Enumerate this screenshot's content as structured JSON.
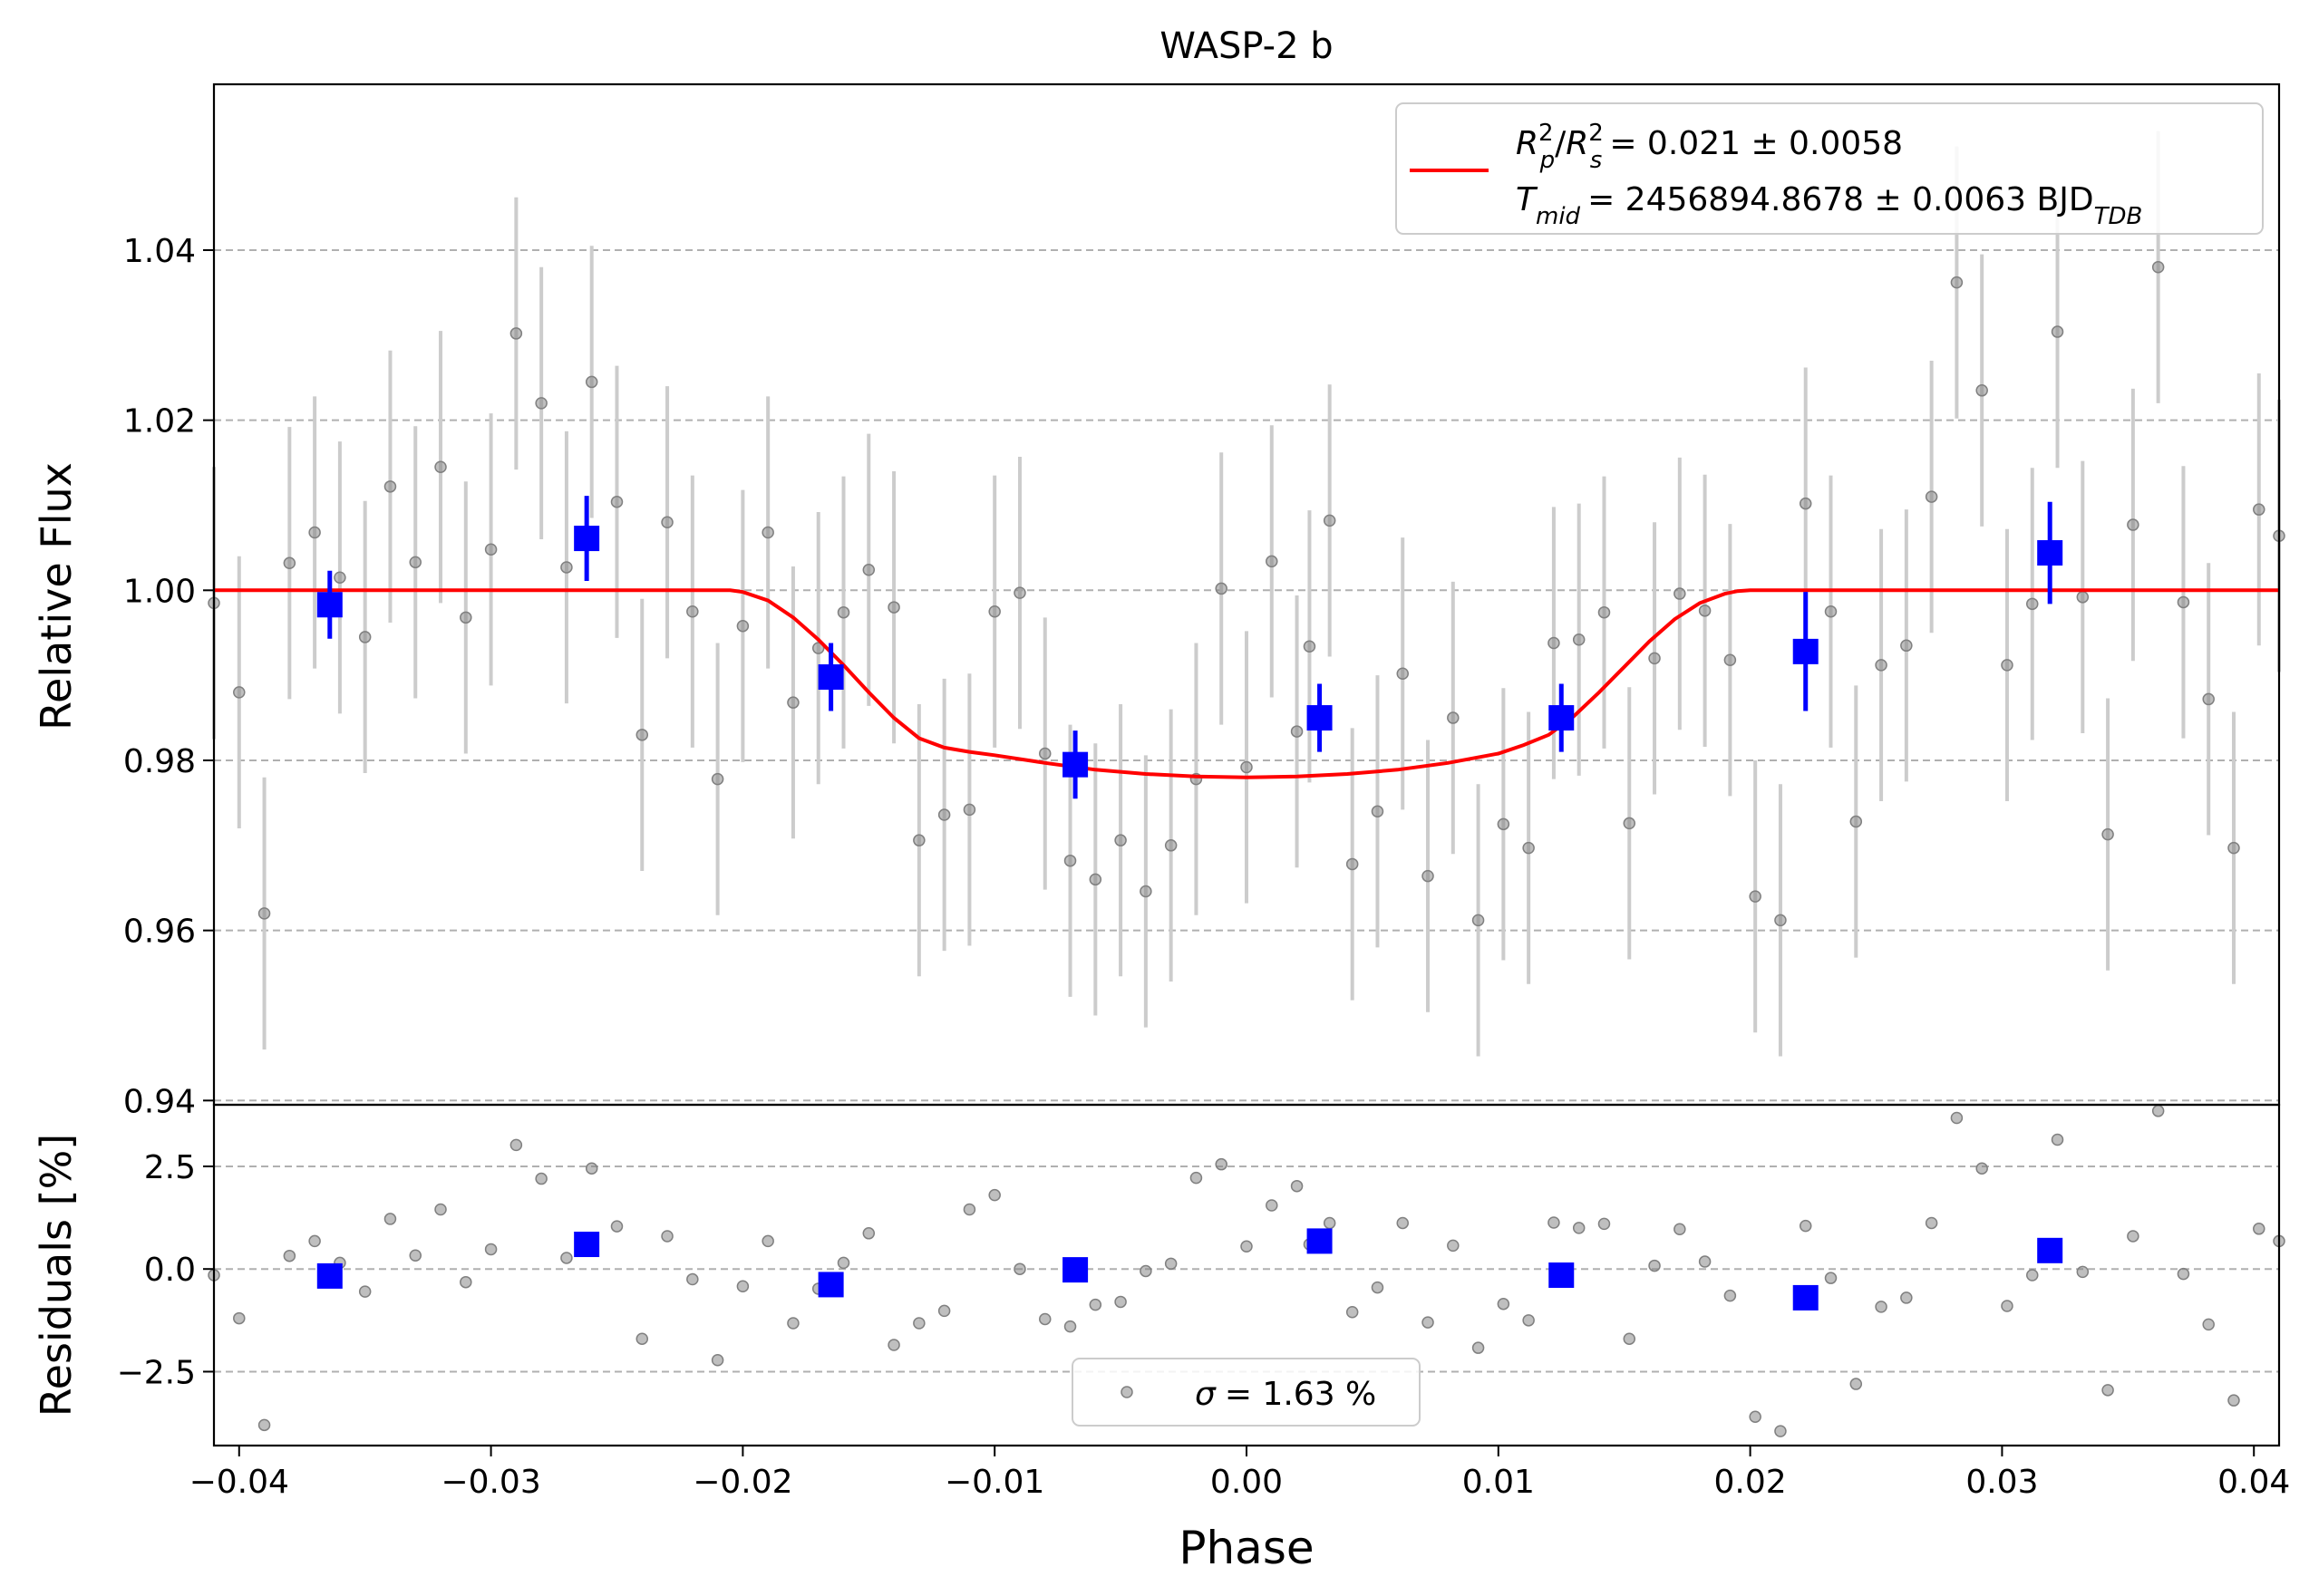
{
  "chart_data": {
    "title": "WASP-2 b",
    "xlabel": "Phase",
    "xlim": [
      -0.041,
      0.041
    ],
    "xticks": [
      -0.04,
      -0.03,
      -0.02,
      -0.01,
      0.0,
      0.01,
      0.02,
      0.03,
      0.04
    ],
    "xtick_labels": [
      "−0.04",
      "−0.03",
      "−0.02",
      "−0.01",
      "0.00",
      "0.01",
      "0.02",
      "0.03",
      "0.04"
    ],
    "top": {
      "type": "scatter",
      "ylabel": "Relative Flux",
      "ylim": [
        0.9395,
        1.0595
      ],
      "yticks": [
        0.94,
        0.96,
        0.98,
        1.0,
        1.02,
        1.04
      ],
      "ytick_labels": [
        "0.94",
        "0.96",
        "0.98",
        "1.00",
        "1.02",
        "1.04"
      ],
      "grid": "horizontal dashed",
      "model": {
        "x": [
          -0.041,
          -0.0205,
          -0.02,
          -0.019,
          -0.018,
          -0.017,
          -0.016,
          -0.015,
          -0.014,
          -0.013,
          -0.012,
          -0.011,
          -0.01,
          -0.008,
          -0.006,
          -0.004,
          -0.002,
          0.0,
          0.002,
          0.004,
          0.006,
          0.008,
          0.01,
          0.011,
          0.012,
          0.013,
          0.014,
          0.015,
          0.016,
          0.017,
          0.018,
          0.019,
          0.0195,
          0.02,
          0.041
        ],
        "y": [
          1.0,
          1.0,
          0.9998,
          0.9988,
          0.9968,
          0.9942,
          0.9912,
          0.988,
          0.985,
          0.9826,
          0.9815,
          0.981,
          0.9806,
          0.9797,
          0.9789,
          0.9784,
          0.9781,
          0.978,
          0.9781,
          0.9784,
          0.9789,
          0.9797,
          0.9808,
          0.9818,
          0.983,
          0.9852,
          0.988,
          0.991,
          0.994,
          0.9966,
          0.9985,
          0.9996,
          0.9999,
          1.0,
          1.0
        ],
        "color": "#ff0000"
      },
      "raw": {
        "color": "#808080",
        "errcolor": "#cccccc",
        "x": [
          -0.041,
          -0.04,
          -0.039,
          -0.038,
          -0.037,
          -0.036,
          -0.035,
          -0.034,
          -0.033,
          -0.032,
          -0.031,
          -0.03,
          -0.029,
          -0.028,
          -0.027,
          -0.026,
          -0.025,
          -0.024,
          -0.023,
          -0.022,
          -0.021,
          -0.02,
          -0.019,
          -0.018,
          -0.017,
          -0.016,
          -0.015,
          -0.014,
          -0.013,
          -0.012,
          -0.011,
          -0.01,
          -0.009,
          -0.008,
          -0.007,
          -0.006,
          -0.005,
          -0.004,
          -0.003,
          -0.002,
          -0.001,
          0.0,
          0.001,
          0.002,
          0.0025,
          0.0033,
          0.0042,
          0.0052,
          0.0062,
          0.0072,
          0.0082,
          0.0092,
          0.0102,
          0.0112,
          0.0122,
          0.0132,
          0.0142,
          0.0152,
          0.0162,
          0.0172,
          0.0182,
          0.0192,
          0.0202,
          0.0212,
          0.0222,
          0.0232,
          0.0242,
          0.0252,
          0.0262,
          0.0272,
          0.0282,
          0.0292,
          0.0302,
          0.0312,
          0.0322,
          0.0332,
          0.0342,
          0.0352,
          0.0362,
          0.0372,
          0.0382,
          0.0392,
          0.0402,
          0.041
        ],
        "y": [
          0.9985,
          0.988,
          0.962,
          1.0032,
          1.0068,
          1.0015,
          0.9945,
          1.0122,
          1.0033,
          1.0145,
          0.9968,
          1.0048,
          1.0302,
          1.022,
          1.0027,
          1.0245,
          1.0104,
          0.983,
          1.008,
          0.9975,
          0.9778,
          0.9958,
          1.0068,
          0.9868,
          0.9932,
          0.9974,
          1.0024,
          0.998,
          0.9706,
          0.9736,
          0.9742,
          0.9975,
          0.9997,
          0.9808,
          0.9682,
          0.966,
          0.9706,
          0.9646,
          0.97,
          0.9778,
          1.0002,
          0.9792,
          1.0034,
          0.9834,
          0.9934,
          1.0082,
          0.9678,
          0.974,
          0.9902,
          0.9664,
          0.985,
          0.9612,
          0.9725,
          0.9697,
          0.9938,
          0.9942,
          0.9974,
          0.9726,
          0.992,
          0.9996,
          0.9976,
          0.9918,
          0.964,
          0.9612,
          1.0102,
          0.9975,
          0.9728,
          0.9912,
          0.9935,
          1.011,
          1.0362,
          1.0235,
          0.9912,
          0.9984,
          1.0304,
          0.9992,
          0.9713,
          1.0077,
          1.038,
          0.9986,
          0.9872,
          0.9697,
          1.0095,
          1.0064
        ],
        "err": [
          0.016,
          0.016,
          0.016,
          0.016,
          0.016,
          0.016,
          0.016,
          0.016,
          0.016,
          0.016,
          0.016,
          0.016,
          0.016,
          0.016,
          0.016,
          0.016,
          0.016,
          0.016,
          0.016,
          0.016,
          0.016,
          0.016,
          0.016,
          0.016,
          0.016,
          0.016,
          0.016,
          0.016,
          0.016,
          0.016,
          0.016,
          0.016,
          0.016,
          0.016,
          0.016,
          0.016,
          0.016,
          0.016,
          0.016,
          0.016,
          0.016,
          0.016,
          0.016,
          0.016,
          0.016,
          0.016,
          0.016,
          0.016,
          0.016,
          0.016,
          0.016,
          0.016,
          0.016,
          0.016,
          0.016,
          0.016,
          0.016,
          0.016,
          0.016,
          0.016,
          0.016,
          0.016,
          0.016,
          0.016,
          0.016,
          0.016,
          0.016,
          0.016,
          0.016,
          0.016,
          0.016,
          0.016,
          0.016,
          0.016,
          0.016,
          0.016,
          0.016,
          0.016,
          0.016,
          0.016,
          0.016,
          0.016,
          0.016,
          0.016
        ]
      },
      "binned": {
        "color": "#0000ff",
        "x": [
          -0.0364,
          -0.0262,
          -0.0165,
          -0.0068,
          0.0029,
          0.0125,
          0.0222,
          0.0319
        ],
        "y": [
          0.9983,
          1.0061,
          0.9898,
          0.9795,
          0.985,
          0.985,
          0.9928,
          1.0044
        ],
        "err": [
          0.004,
          0.005,
          0.004,
          0.004,
          0.004,
          0.004,
          0.007,
          0.006
        ]
      },
      "legend": {
        "position": "top-right",
        "line1_a": "R",
        "line1_a_sup": "2",
        "line1_a_sub": "p",
        "line1_b": "R",
        "line1_b_sup": "2",
        "line1_b_sub": "s",
        "line1_value": "= 0.021 ± 0.0058",
        "line2_t": "T",
        "line2_t_sub": "mid",
        "line2_value": "= 2456894.8678 ± 0.0063 BJD",
        "line2_unit_sub": "TDB"
      }
    },
    "bottom": {
      "type": "scatter",
      "ylabel": "Residuals [%]",
      "ylim": [
        -4.3,
        4.0
      ],
      "yticks": [
        -2.5,
        0.0,
        2.5
      ],
      "ytick_labels": [
        "−2.5",
        "0.0",
        "2.5"
      ],
      "grid": "horizontal dashed",
      "raw_y": [
        -0.15,
        -1.2,
        -3.8,
        0.32,
        0.68,
        0.15,
        -0.55,
        1.22,
        0.33,
        1.45,
        -0.32,
        0.48,
        3.02,
        2.2,
        0.27,
        2.45,
        1.04,
        -1.7,
        0.8,
        -0.25,
        -2.22,
        -0.42,
        0.68,
        -1.32,
        -0.48,
        0.15,
        0.87,
        -1.85,
        -1.32,
        -1.02,
        1.45,
        1.8,
        0.0,
        -1.22,
        -1.4,
        -0.87,
        -0.8,
        -0.05,
        0.13,
        2.22,
        2.55,
        0.55,
        1.55,
        2.02,
        0.6,
        1.12,
        -1.05,
        -0.45,
        1.12,
        -1.3,
        0.57,
        -1.92,
        -0.85,
        -1.25,
        1.13,
        1.0,
        1.1,
        -1.7,
        0.08,
        0.97,
        0.18,
        -0.65,
        -3.6,
        -3.95,
        1.05,
        -0.22,
        -2.8,
        -0.92,
        -0.7,
        1.12,
        3.68,
        2.45,
        -0.9,
        -0.15,
        3.15,
        -0.07,
        -2.95,
        0.8,
        3.85,
        -0.12,
        -1.35,
        -3.2,
        0.98,
        0.68
      ],
      "binned_y": [
        -0.17,
        0.6,
        -0.38,
        -0.02,
        0.68,
        -0.15,
        -0.7,
        0.45
      ],
      "legend": {
        "position": "bottom-center",
        "sigma": "σ",
        "value": "= 1.63 %"
      }
    }
  }
}
